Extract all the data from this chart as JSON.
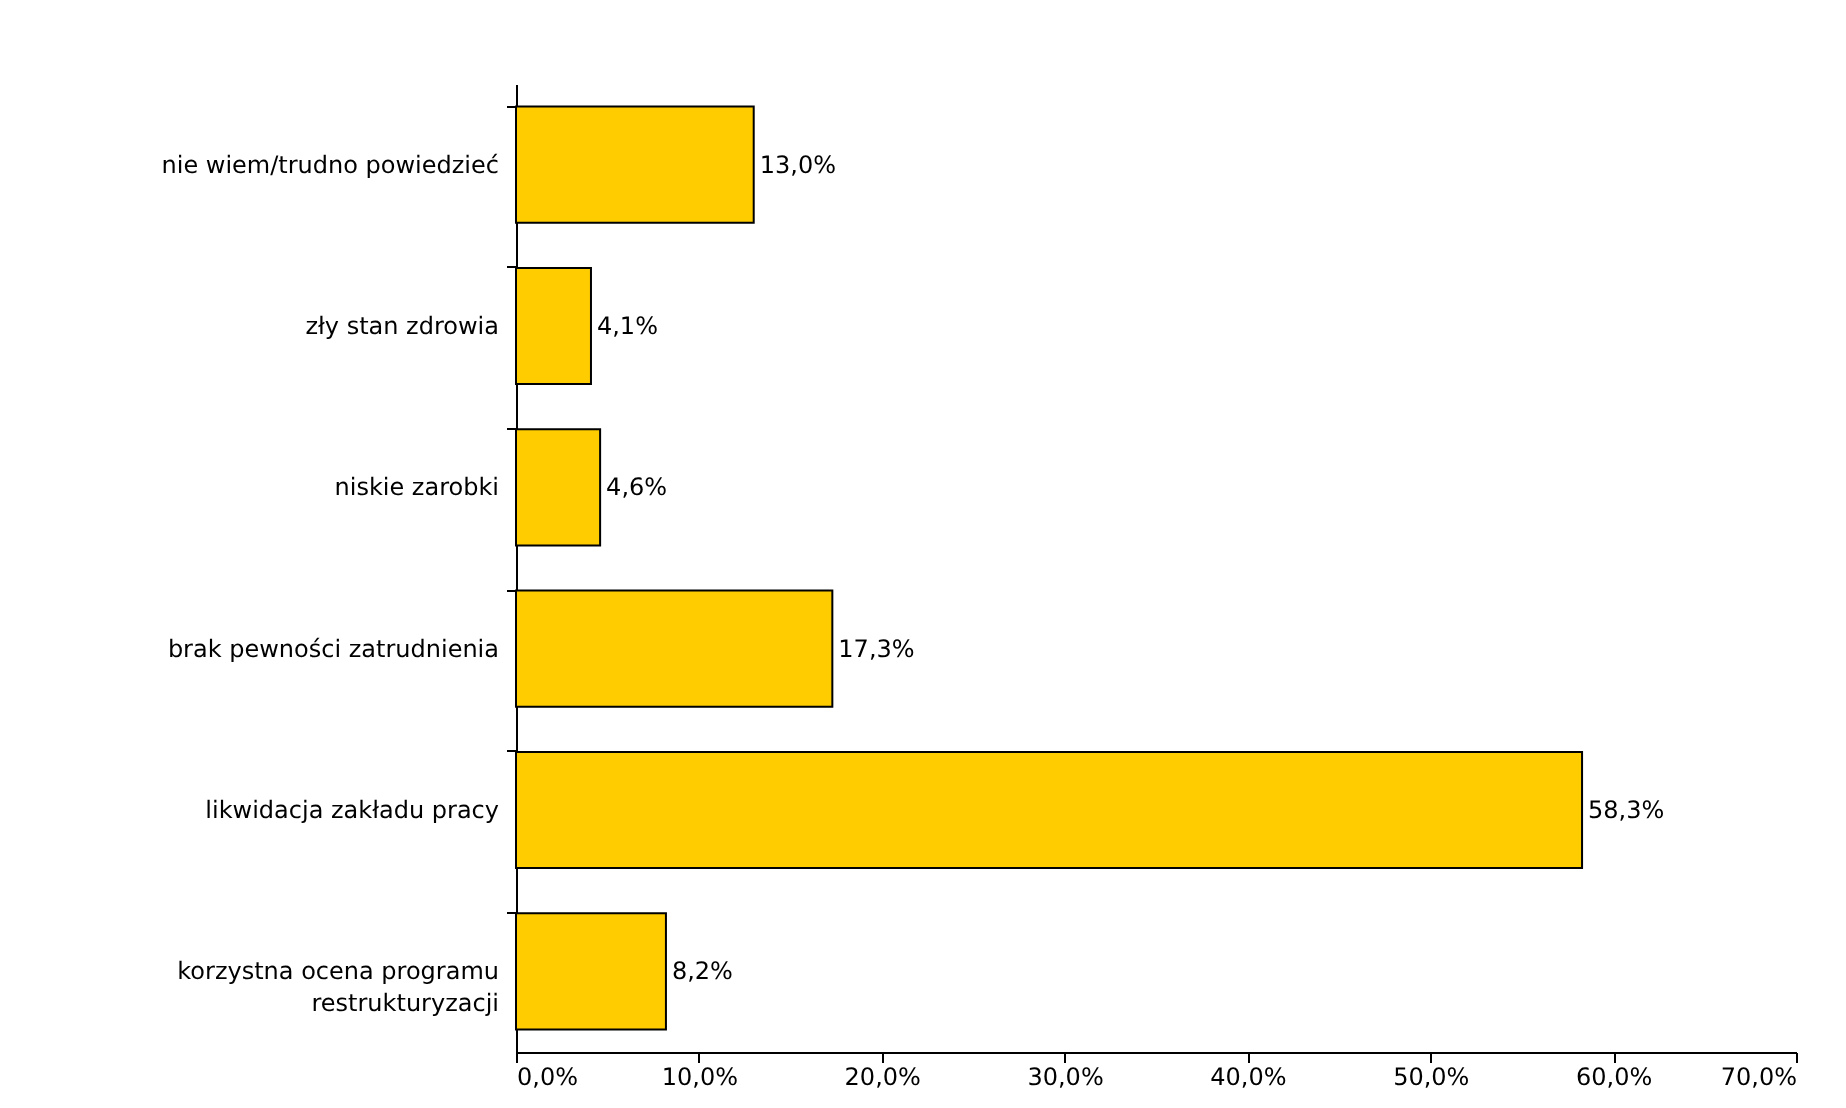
{
  "chart_data": {
    "type": "bar",
    "orientation": "horizontal",
    "categories": [
      "nie wiem/trudno powiedzieć",
      "zły stan zdrowia",
      "niskie zarobki",
      "brak pewności zatrudnienia",
      "likwidacja zakładu pracy",
      "korzystna ocena programu restrukturyzacji"
    ],
    "values": [
      13.0,
      4.1,
      4.6,
      17.3,
      58.3,
      8.2
    ],
    "value_labels": [
      "13,0%",
      "4,1%",
      "4,6%",
      "17,3%",
      "58,3%",
      "8,2%"
    ],
    "color": "#ffcc00",
    "xlim": [
      0,
      70
    ],
    "xticks": [
      {
        "value": 0,
        "label": "0,0%"
      },
      {
        "value": 10,
        "label": "10,0%"
      },
      {
        "value": 20,
        "label": "20,0%"
      },
      {
        "value": 30,
        "label": "30,0%"
      },
      {
        "value": 40,
        "label": "40,0%"
      },
      {
        "value": 50,
        "label": "50,0%"
      },
      {
        "value": 60,
        "label": "60,0%"
      },
      {
        "value": 70,
        "label": "70,0%"
      }
    ],
    "grid": false
  }
}
